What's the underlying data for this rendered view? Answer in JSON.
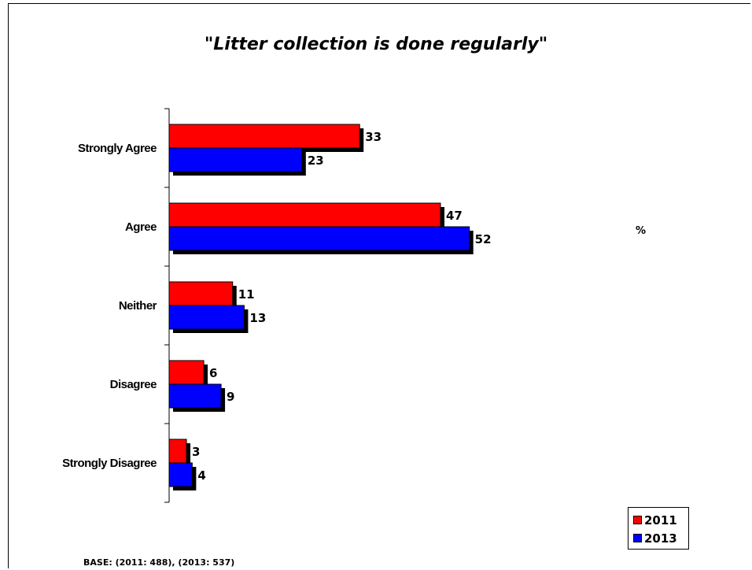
{
  "chart_data": {
    "type": "bar",
    "orientation": "horizontal",
    "title": "\"Litter collection is done regularly\"",
    "unit_label": "%",
    "categories": [
      "Strongly Agree",
      "Agree",
      "Neither",
      "Disagree",
      "Strongly Disagree"
    ],
    "series": [
      {
        "name": "2011",
        "color": "#ff0000",
        "values": [
          33,
          47,
          11,
          6,
          3
        ]
      },
      {
        "name": "2013",
        "color": "#0000ff",
        "values": [
          23,
          52,
          13,
          9,
          4
        ]
      }
    ],
    "xlim": [
      0,
      60
    ],
    "grid": false,
    "legend": "bottom-right",
    "base_note": "BASE: (2011: 488), (2013: 537)"
  }
}
